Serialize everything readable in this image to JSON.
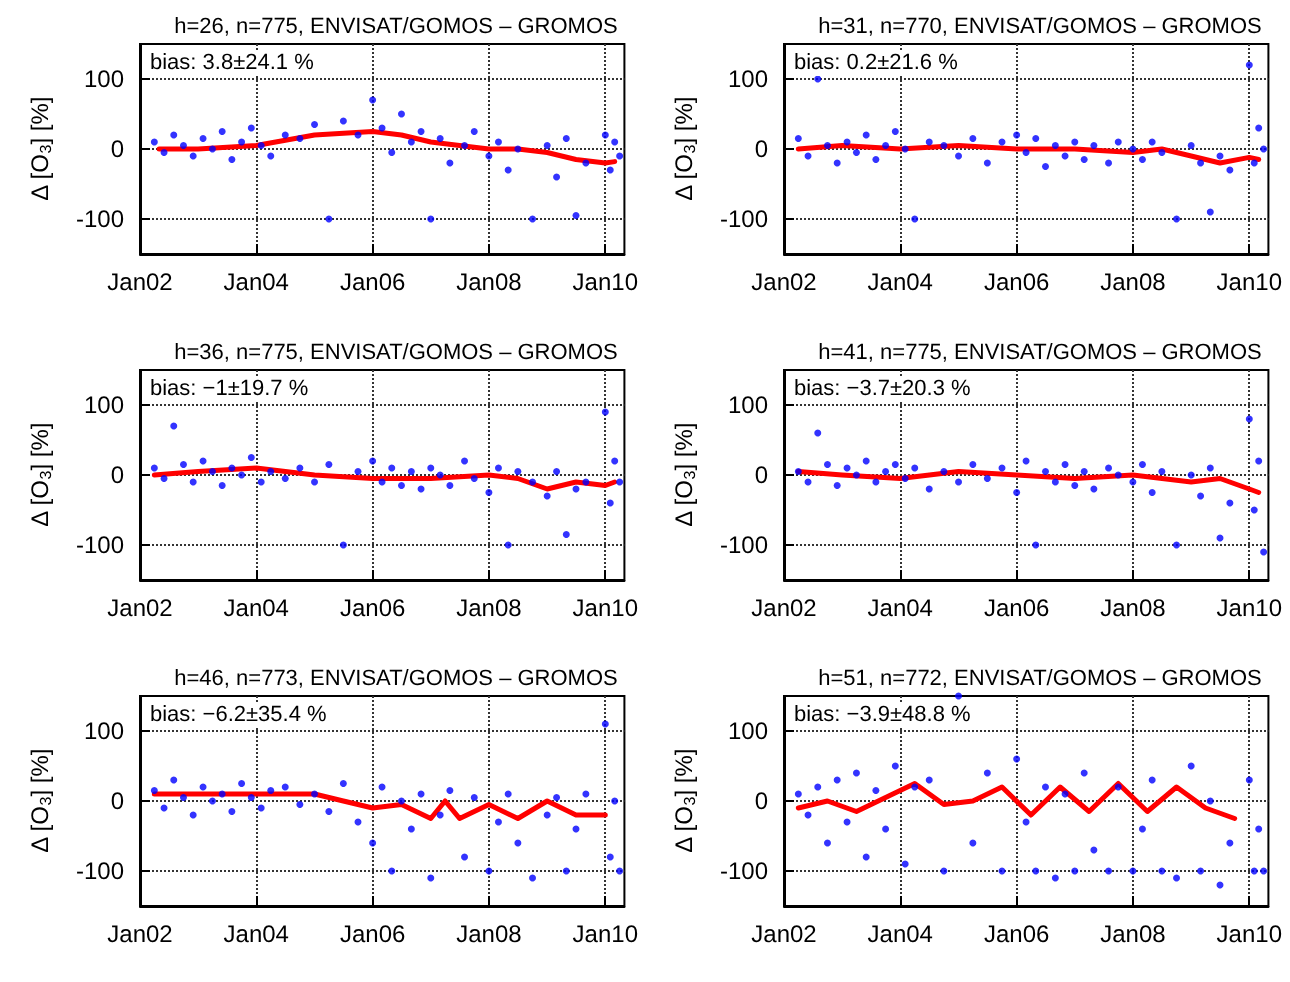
{
  "chart_data": [
    {
      "type": "scatter",
      "title": "h=26, n=775, ENVISAT/GOMOS – GROMOS",
      "ylabel": "Δ [O$_{3}$] [%]",
      "annotations": [
        "bias: 3.8±24.1 %"
      ],
      "xlim": [
        "2002-01",
        "2010-05"
      ],
      "xticks": [
        {
          "value": "2002-01",
          "label": "Jan02"
        },
        {
          "value": "2004-01",
          "label": "Jan04"
        },
        {
          "value": "2006-01",
          "label": "Jan06"
        },
        {
          "value": "2008-01",
          "label": "Jan08"
        },
        {
          "value": "2010-01",
          "label": "Jan10"
        }
      ],
      "ylim": [
        -150,
        150
      ],
      "yticks": [
        -100,
        0,
        100
      ],
      "grid": true,
      "series": [
        {
          "type": "scatter",
          "marker": "circle",
          "color": "#0000ff",
          "x": [
            "2002-04",
            "2002-06",
            "2002-08",
            "2002-10",
            "2002-12",
            "2003-02",
            "2003-04",
            "2003-06",
            "2003-08",
            "2003-10",
            "2003-12",
            "2004-02",
            "2004-04",
            "2004-07",
            "2004-10",
            "2005-01",
            "2005-04",
            "2005-07",
            "2005-10",
            "2006-01",
            "2006-03",
            "2006-05",
            "2006-07",
            "2006-09",
            "2006-11",
            "2007-01",
            "2007-03",
            "2007-05",
            "2007-08",
            "2007-10",
            "2008-01",
            "2008-03",
            "2008-05",
            "2008-07",
            "2008-10",
            "2009-01",
            "2009-03",
            "2009-05",
            "2009-07",
            "2009-09",
            "2010-01",
            "2010-02",
            "2010-03",
            "2010-04"
          ],
          "values": [
            10,
            -5,
            20,
            5,
            -10,
            15,
            0,
            25,
            -15,
            10,
            30,
            5,
            -10,
            20,
            15,
            35,
            -100,
            40,
            20,
            70,
            30,
            -5,
            50,
            10,
            25,
            -100,
            15,
            -20,
            5,
            25,
            -10,
            10,
            -30,
            0,
            -100,
            5,
            -40,
            15,
            -95,
            -20,
            20,
            -30,
            10,
            -10
          ]
        },
        {
          "type": "line",
          "marker": "none",
          "color": "#ff0000",
          "x": [
            "2002-05",
            "2003-01",
            "2004-01",
            "2005-01",
            "2006-01",
            "2006-07",
            "2007-01",
            "2007-07",
            "2008-01",
            "2008-07",
            "2009-01",
            "2009-07",
            "2010-01",
            "2010-03"
          ],
          "values": [
            0,
            0,
            5,
            20,
            25,
            20,
            10,
            5,
            0,
            0,
            -5,
            -15,
            -20,
            -18
          ]
        }
      ]
    },
    {
      "type": "scatter",
      "title": "h=31, n=770, ENVISAT/GOMOS – GROMOS",
      "ylabel": "Δ [O$_{3}$] [%]",
      "annotations": [
        "bias: 0.2±21.6 %"
      ],
      "xlim": [
        "2002-01",
        "2010-05"
      ],
      "xticks": [
        {
          "value": "2002-01",
          "label": "Jan02"
        },
        {
          "value": "2004-01",
          "label": "Jan04"
        },
        {
          "value": "2006-01",
          "label": "Jan06"
        },
        {
          "value": "2008-01",
          "label": "Jan08"
        },
        {
          "value": "2010-01",
          "label": "Jan10"
        }
      ],
      "ylim": [
        -150,
        150
      ],
      "yticks": [
        -100,
        0,
        100
      ],
      "grid": true,
      "series": [
        {
          "type": "scatter",
          "marker": "circle",
          "color": "#0000ff",
          "x": [
            "2002-04",
            "2002-06",
            "2002-08",
            "2002-10",
            "2002-12",
            "2003-02",
            "2003-04",
            "2003-06",
            "2003-08",
            "2003-10",
            "2003-12",
            "2004-02",
            "2004-04",
            "2004-07",
            "2004-10",
            "2005-01",
            "2005-04",
            "2005-07",
            "2005-10",
            "2006-01",
            "2006-03",
            "2006-05",
            "2006-07",
            "2006-09",
            "2006-11",
            "2007-01",
            "2007-03",
            "2007-05",
            "2007-08",
            "2007-10",
            "2008-01",
            "2008-03",
            "2008-05",
            "2008-07",
            "2008-10",
            "2009-01",
            "2009-03",
            "2009-05",
            "2009-07",
            "2009-09",
            "2010-01",
            "2010-02",
            "2010-03",
            "2010-04"
          ],
          "values": [
            15,
            -10,
            100,
            5,
            -20,
            10,
            -5,
            20,
            -15,
            5,
            25,
            0,
            -100,
            10,
            5,
            -10,
            15,
            -20,
            10,
            20,
            -5,
            15,
            -25,
            5,
            -10,
            10,
            -15,
            5,
            -20,
            10,
            0,
            -15,
            10,
            -5,
            -100,
            5,
            -20,
            -90,
            -10,
            -30,
            120,
            -20,
            30,
            0
          ]
        },
        {
          "type": "line",
          "marker": "none",
          "color": "#ff0000",
          "x": [
            "2002-04",
            "2003-01",
            "2004-01",
            "2005-01",
            "2006-01",
            "2007-01",
            "2008-01",
            "2008-07",
            "2009-01",
            "2009-07",
            "2010-01",
            "2010-03"
          ],
          "values": [
            0,
            5,
            0,
            5,
            0,
            0,
            -5,
            0,
            -10,
            -20,
            -12,
            -15
          ]
        }
      ]
    },
    {
      "type": "scatter",
      "title": "h=36, n=775, ENVISAT/GOMOS – GROMOS",
      "ylabel": "Δ [O$_{3}$] [%]",
      "annotations": [
        "bias: −1±19.7 %"
      ],
      "xlim": [
        "2002-01",
        "2010-05"
      ],
      "xticks": [
        {
          "value": "2002-01",
          "label": "Jan02"
        },
        {
          "value": "2004-01",
          "label": "Jan04"
        },
        {
          "value": "2006-01",
          "label": "Jan06"
        },
        {
          "value": "2008-01",
          "label": "Jan08"
        },
        {
          "value": "2010-01",
          "label": "Jan10"
        }
      ],
      "ylim": [
        -150,
        150
      ],
      "yticks": [
        -100,
        0,
        100
      ],
      "grid": true,
      "series": [
        {
          "type": "scatter",
          "marker": "circle",
          "color": "#0000ff",
          "x": [
            "2002-04",
            "2002-06",
            "2002-08",
            "2002-10",
            "2002-12",
            "2003-02",
            "2003-04",
            "2003-06",
            "2003-08",
            "2003-10",
            "2003-12",
            "2004-02",
            "2004-04",
            "2004-07",
            "2004-10",
            "2005-01",
            "2005-04",
            "2005-07",
            "2005-10",
            "2006-01",
            "2006-03",
            "2006-05",
            "2006-07",
            "2006-09",
            "2006-11",
            "2007-01",
            "2007-03",
            "2007-05",
            "2007-08",
            "2007-10",
            "2008-01",
            "2008-03",
            "2008-05",
            "2008-07",
            "2008-10",
            "2009-01",
            "2009-03",
            "2009-05",
            "2009-07",
            "2009-09",
            "2010-01",
            "2010-02",
            "2010-03",
            "2010-04"
          ],
          "values": [
            10,
            -5,
            70,
            15,
            -10,
            20,
            5,
            -15,
            10,
            0,
            25,
            -10,
            5,
            -5,
            10,
            -10,
            15,
            -100,
            5,
            20,
            -10,
            10,
            -15,
            5,
            -20,
            10,
            0,
            -15,
            20,
            -5,
            -25,
            10,
            -100,
            5,
            -10,
            -30,
            5,
            -85,
            -20,
            -10,
            90,
            -40,
            20,
            -10
          ]
        },
        {
          "type": "line",
          "marker": "none",
          "color": "#ff0000",
          "x": [
            "2002-04",
            "2003-01",
            "2004-01",
            "2005-01",
            "2006-01",
            "2007-01",
            "2008-01",
            "2008-07",
            "2009-01",
            "2009-07",
            "2010-01",
            "2010-03"
          ],
          "values": [
            0,
            5,
            10,
            0,
            -5,
            -5,
            0,
            -5,
            -20,
            -10,
            -15,
            -10
          ]
        }
      ]
    },
    {
      "type": "scatter",
      "title": "h=41, n=775, ENVISAT/GOMOS – GROMOS",
      "ylabel": "Δ [O$_{3}$] [%]",
      "annotations": [
        "bias: −3.7±20.3 %"
      ],
      "xlim": [
        "2002-01",
        "2010-05"
      ],
      "xticks": [
        {
          "value": "2002-01",
          "label": "Jan02"
        },
        {
          "value": "2004-01",
          "label": "Jan04"
        },
        {
          "value": "2006-01",
          "label": "Jan06"
        },
        {
          "value": "2008-01",
          "label": "Jan08"
        },
        {
          "value": "2010-01",
          "label": "Jan10"
        }
      ],
      "ylim": [
        -150,
        150
      ],
      "yticks": [
        -100,
        0,
        100
      ],
      "grid": true,
      "series": [
        {
          "type": "scatter",
          "marker": "circle",
          "color": "#0000ff",
          "x": [
            "2002-04",
            "2002-06",
            "2002-08",
            "2002-10",
            "2002-12",
            "2003-02",
            "2003-04",
            "2003-06",
            "2003-08",
            "2003-10",
            "2003-12",
            "2004-02",
            "2004-04",
            "2004-07",
            "2004-10",
            "2005-01",
            "2005-04",
            "2005-07",
            "2005-10",
            "2006-01",
            "2006-03",
            "2006-05",
            "2006-07",
            "2006-09",
            "2006-11",
            "2007-01",
            "2007-03",
            "2007-05",
            "2007-08",
            "2007-10",
            "2008-01",
            "2008-03",
            "2008-05",
            "2008-07",
            "2008-10",
            "2009-01",
            "2009-03",
            "2009-05",
            "2009-07",
            "2009-09",
            "2010-01",
            "2010-02",
            "2010-03",
            "2010-04"
          ],
          "values": [
            5,
            -10,
            60,
            15,
            -15,
            10,
            0,
            20,
            -10,
            5,
            15,
            -5,
            10,
            -20,
            5,
            -10,
            15,
            -5,
            10,
            -25,
            20,
            -100,
            5,
            -10,
            15,
            -15,
            5,
            -20,
            10,
            0,
            -10,
            15,
            -25,
            5,
            -100,
            0,
            -30,
            10,
            -90,
            -40,
            80,
            -50,
            20,
            -110
          ]
        },
        {
          "type": "line",
          "marker": "none",
          "color": "#ff0000",
          "x": [
            "2002-04",
            "2003-01",
            "2004-01",
            "2005-01",
            "2006-01",
            "2007-01",
            "2008-01",
            "2009-01",
            "2009-07",
            "2010-01",
            "2010-03"
          ],
          "values": [
            5,
            0,
            -5,
            5,
            0,
            -5,
            0,
            -10,
            -5,
            -20,
            -25
          ]
        }
      ]
    },
    {
      "type": "scatter",
      "title": "h=46, n=773, ENVISAT/GOMOS – GROMOS",
      "ylabel": "Δ [O$_{3}$] [%]",
      "annotations": [
        "bias: −6.2±35.4 %"
      ],
      "xlim": [
        "2002-01",
        "2010-05"
      ],
      "xticks": [
        {
          "value": "2002-01",
          "label": "Jan02"
        },
        {
          "value": "2004-01",
          "label": "Jan04"
        },
        {
          "value": "2006-01",
          "label": "Jan06"
        },
        {
          "value": "2008-01",
          "label": "Jan08"
        },
        {
          "value": "2010-01",
          "label": "Jan10"
        }
      ],
      "ylim": [
        -150,
        150
      ],
      "yticks": [
        -100,
        0,
        100
      ],
      "grid": true,
      "series": [
        {
          "type": "scatter",
          "marker": "circle",
          "color": "#0000ff",
          "x": [
            "2002-04",
            "2002-06",
            "2002-08",
            "2002-10",
            "2002-12",
            "2003-02",
            "2003-04",
            "2003-06",
            "2003-08",
            "2003-10",
            "2003-12",
            "2004-02",
            "2004-04",
            "2004-07",
            "2004-10",
            "2005-01",
            "2005-04",
            "2005-07",
            "2005-10",
            "2006-01",
            "2006-03",
            "2006-05",
            "2006-07",
            "2006-09",
            "2006-11",
            "2007-01",
            "2007-03",
            "2007-05",
            "2007-08",
            "2007-10",
            "2008-01",
            "2008-03",
            "2008-05",
            "2008-07",
            "2008-10",
            "2009-01",
            "2009-03",
            "2009-05",
            "2009-07",
            "2009-09",
            "2010-01",
            "2010-02",
            "2010-03",
            "2010-04"
          ],
          "values": [
            15,
            -10,
            30,
            5,
            -20,
            20,
            0,
            10,
            -15,
            25,
            5,
            -10,
            15,
            20,
            -5,
            10,
            -15,
            25,
            -30,
            -60,
            20,
            -100,
            0,
            -40,
            10,
            -110,
            -20,
            15,
            -80,
            5,
            -100,
            -30,
            10,
            -60,
            -110,
            -20,
            5,
            -100,
            -40,
            10,
            110,
            -80,
            0,
            -100
          ]
        },
        {
          "type": "line",
          "marker": "none",
          "color": "#ff0000",
          "x": [
            "2002-04",
            "2003-01",
            "2004-01",
            "2005-01",
            "2005-07",
            "2006-01",
            "2006-07",
            "2007-01",
            "2007-04",
            "2007-07",
            "2008-01",
            "2008-07",
            "2009-01",
            "2009-07",
            "2010-01"
          ],
          "values": [
            10,
            10,
            10,
            10,
            0,
            -10,
            -5,
            -25,
            0,
            -25,
            -5,
            -25,
            0,
            -20,
            -20
          ]
        }
      ]
    },
    {
      "type": "scatter",
      "title": "h=51, n=772, ENVISAT/GOMOS – GROMOS",
      "ylabel": "Δ [O$_{3}$] [%]",
      "annotations": [
        "bias: −3.9±48.8 %"
      ],
      "xlim": [
        "2002-01",
        "2010-05"
      ],
      "xticks": [
        {
          "value": "2002-01",
          "label": "Jan02"
        },
        {
          "value": "2004-01",
          "label": "Jan04"
        },
        {
          "value": "2006-01",
          "label": "Jan06"
        },
        {
          "value": "2008-01",
          "label": "Jan08"
        },
        {
          "value": "2010-01",
          "label": "Jan10"
        }
      ],
      "ylim": [
        -150,
        150
      ],
      "yticks": [
        -100,
        0,
        100
      ],
      "grid": true,
      "series": [
        {
          "type": "scatter",
          "marker": "circle",
          "color": "#0000ff",
          "x": [
            "2002-04",
            "2002-06",
            "2002-08",
            "2002-10",
            "2002-12",
            "2003-02",
            "2003-04",
            "2003-06",
            "2003-08",
            "2003-10",
            "2003-12",
            "2004-02",
            "2004-04",
            "2004-07",
            "2004-10",
            "2005-01",
            "2005-04",
            "2005-07",
            "2005-10",
            "2006-01",
            "2006-03",
            "2006-05",
            "2006-07",
            "2006-09",
            "2006-11",
            "2007-01",
            "2007-03",
            "2007-05",
            "2007-08",
            "2007-10",
            "2008-01",
            "2008-03",
            "2008-05",
            "2008-07",
            "2008-10",
            "2009-01",
            "2009-03",
            "2009-05",
            "2009-07",
            "2009-09",
            "2010-01",
            "2010-02",
            "2010-03",
            "2010-04"
          ],
          "values": [
            10,
            -20,
            20,
            -60,
            30,
            -30,
            40,
            -80,
            15,
            -40,
            50,
            -90,
            20,
            30,
            -100,
            150,
            -60,
            40,
            -100,
            60,
            -30,
            -100,
            20,
            -110,
            10,
            -100,
            40,
            -70,
            -100,
            20,
            -100,
            -40,
            30,
            -100,
            -110,
            50,
            -100,
            0,
            -120,
            -60,
            30,
            -100,
            -40,
            -100
          ]
        },
        {
          "type": "line",
          "marker": "none",
          "color": "#ff0000",
          "x": [
            "2002-04",
            "2002-10",
            "2003-04",
            "2003-10",
            "2004-04",
            "2004-10",
            "2005-04",
            "2005-10",
            "2006-04",
            "2006-10",
            "2007-04",
            "2007-10",
            "2008-04",
            "2008-10",
            "2009-04",
            "2009-10"
          ],
          "values": [
            -10,
            0,
            -15,
            5,
            25,
            -5,
            0,
            20,
            -20,
            20,
            -15,
            25,
            -15,
            20,
            -10,
            -25
          ]
        }
      ]
    }
  ]
}
